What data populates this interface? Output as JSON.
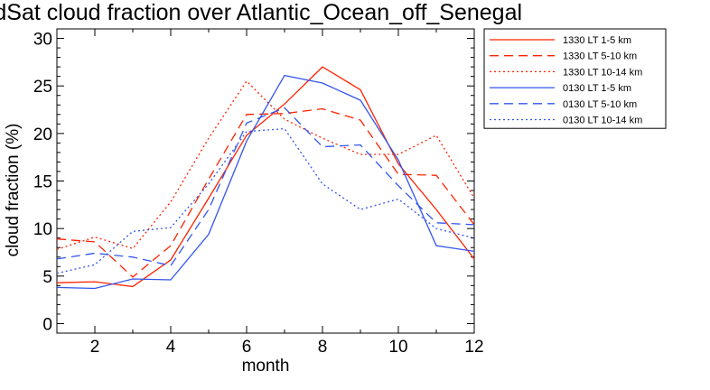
{
  "chart_data": {
    "type": "line",
    "title": "CloudSat cloud fraction over Atlantic_Ocean_off_Senegal",
    "xlabel": "month",
    "ylabel": "cloud fraction (%)",
    "xlim": [
      1,
      12
    ],
    "ylim": [
      -1,
      31
    ],
    "xticks": [
      2,
      4,
      6,
      8,
      10,
      12
    ],
    "yticks": [
      0,
      5,
      10,
      15,
      20,
      25,
      30
    ],
    "legend_position": "outside-right",
    "x": [
      1,
      2,
      3,
      4,
      5,
      6,
      7,
      8,
      9,
      10,
      11,
      12
    ],
    "series": [
      {
        "name": "1330 LT 1-5 km",
        "color": "#ff2200",
        "style": "solid",
        "values": [
          4.3,
          4.4,
          3.9,
          6.7,
          13.2,
          19.8,
          23.1,
          27.0,
          24.6,
          16.8,
          12.0,
          6.8
        ]
      },
      {
        "name": "1330 LT 5-10 km",
        "color": "#ff2200",
        "style": "dashed",
        "values": [
          8.9,
          8.6,
          4.9,
          8.2,
          15.2,
          22.0,
          22.1,
          22.6,
          21.4,
          15.7,
          15.6,
          10.4
        ]
      },
      {
        "name": "1330 LT 10-14 km",
        "color": "#ff2200",
        "style": "dotted",
        "values": [
          7.8,
          9.1,
          7.9,
          12.8,
          19.5,
          25.5,
          21.5,
          19.5,
          17.8,
          17.8,
          19.8,
          13.2
        ]
      },
      {
        "name": "0130 LT 1-5 km",
        "color": "#3355ee",
        "style": "solid",
        "values": [
          3.8,
          3.7,
          4.7,
          4.6,
          9.4,
          19.2,
          26.1,
          25.3,
          23.5,
          17.2,
          8.2,
          7.6
        ]
      },
      {
        "name": "0130 LT 5-10 km",
        "color": "#3355ee",
        "style": "dashed",
        "values": [
          6.8,
          7.4,
          7.0,
          6.1,
          12.0,
          21.1,
          22.7,
          18.6,
          18.8,
          14.5,
          10.6,
          10.4
        ]
      },
      {
        "name": "0130 LT 10-14 km",
        "color": "#3355ee",
        "style": "dotted",
        "values": [
          5.3,
          6.2,
          9.7,
          10.1,
          14.7,
          20.2,
          20.5,
          14.7,
          12.0,
          13.1,
          10.0,
          9.0
        ]
      }
    ]
  }
}
